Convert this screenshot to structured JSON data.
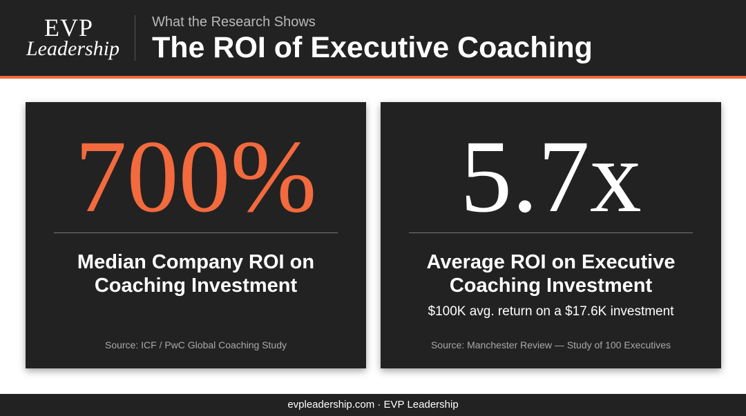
{
  "header": {
    "logo_line1": "EVP",
    "logo_line2": "Leadership",
    "eyebrow": "What the Research Shows",
    "title": "The ROI of Executive Coaching"
  },
  "cards": [
    {
      "stat": "700%",
      "label_line1": "Median Company ROI on",
      "label_line2": "Coaching Investment",
      "subtext": "",
      "source": "Source: ICF / PwC Global Coaching Study"
    },
    {
      "stat": "5.7x",
      "label_line1": "Average ROI on Executive",
      "label_line2": "Coaching Investment",
      "subtext": "$100K avg. return on a $17.6K investment",
      "source": "Source: Manchester Review — Study of 100 Executives"
    }
  ],
  "footer": {
    "text": "evpleadership.com · EVP Leadership"
  },
  "colors": {
    "background_dark": "#222222",
    "accent_orange": "#f26a3d",
    "text_white": "#ffffff",
    "text_muted": "#a9a9a9"
  }
}
